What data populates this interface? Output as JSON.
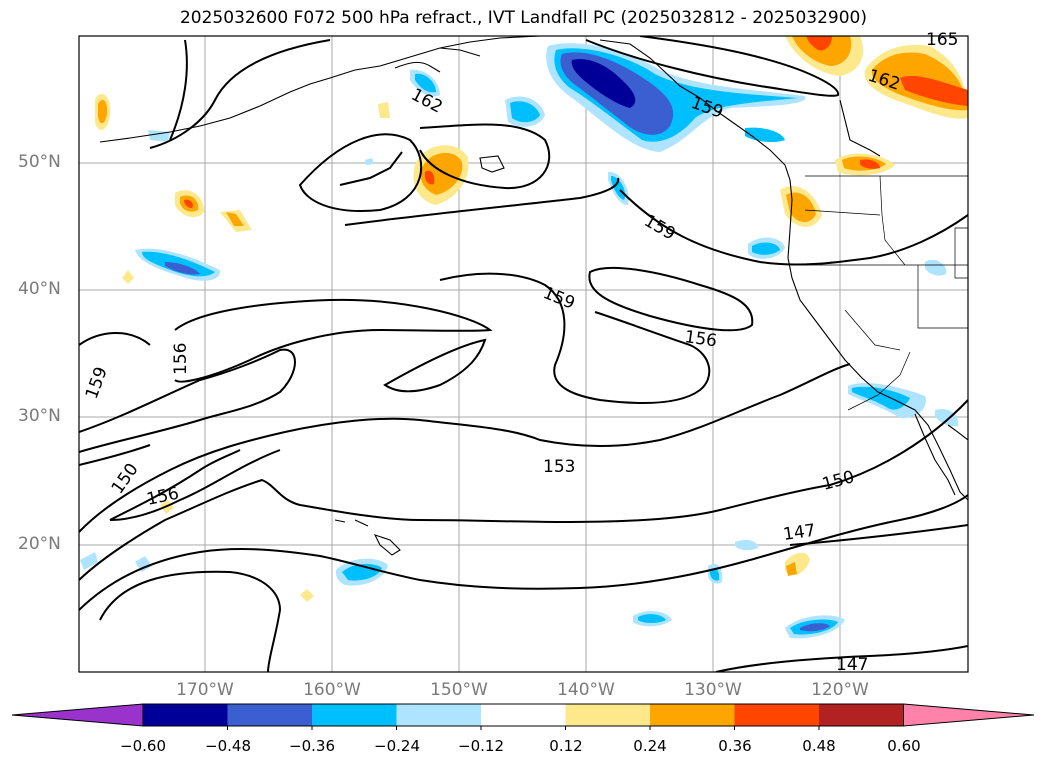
{
  "title": "2025032600 F072 500 hPa refract., IVT Landfall PC (2025032812 - 2025032900)",
  "map": {
    "lat_labels": [
      "50°N",
      "40°N",
      "30°N",
      "20°N"
    ],
    "lon_labels": [
      "170°W",
      "160°W",
      "150°W",
      "140°W",
      "130°W",
      "120°W"
    ],
    "contour_labels": [
      "165",
      "162",
      "162",
      "159",
      "159",
      "159",
      "159",
      "156",
      "156",
      "156",
      "153",
      "150",
      "150",
      "147",
      "147"
    ]
  },
  "colorbar": {
    "tick_labels": [
      "−0.60",
      "−0.48",
      "−0.36",
      "−0.24",
      "−0.12",
      "0.12",
      "0.24",
      "0.36",
      "0.48",
      "0.60"
    ],
    "colors": [
      "#9933cc",
      "#000099",
      "#3b5fd0",
      "#00bfff",
      "#aee4ff",
      "#ffffff",
      "#fde98c",
      "#ffa500",
      "#ff4500",
      "#b22222",
      "#ff82aa"
    ]
  }
}
